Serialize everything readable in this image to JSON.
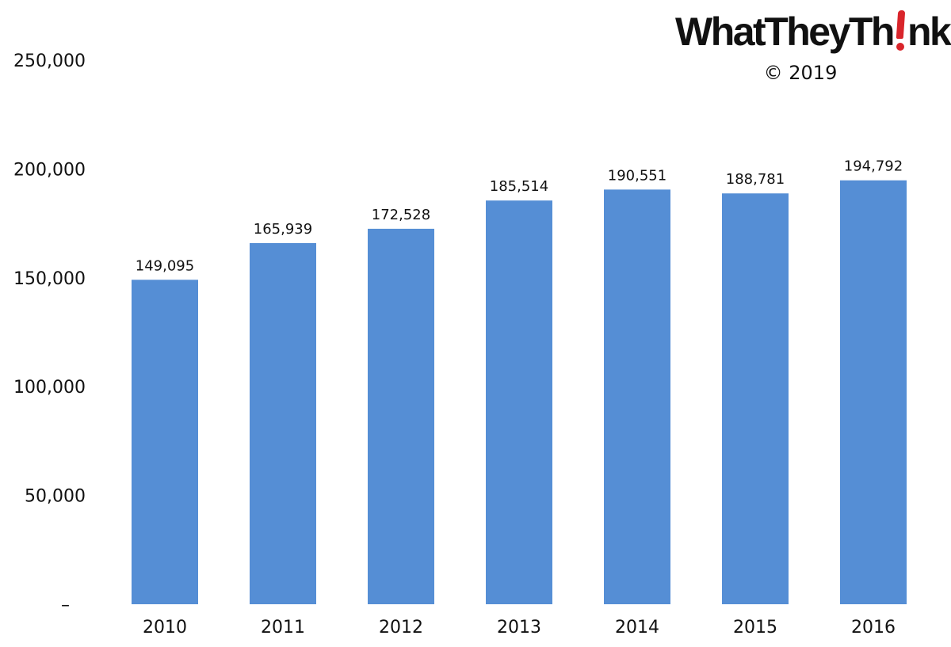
{
  "branding": {
    "logo_text_before": "WhatTheyTh",
    "logo_text_after": "nk",
    "copyright": "© 2019"
  },
  "colors": {
    "bar": "#558ed5",
    "text": "#111111",
    "logo_accent": "#d9252b"
  },
  "chart_data": {
    "type": "bar",
    "categories": [
      "2010",
      "2011",
      "2012",
      "2013",
      "2014",
      "2015",
      "2016"
    ],
    "values": [
      149095,
      165939,
      172528,
      185514,
      190551,
      188781,
      194792
    ],
    "value_labels": [
      "149,095",
      "165,939",
      "172,528",
      "185,514",
      "190,551",
      "188,781",
      "194,792"
    ],
    "title": "",
    "xlabel": "",
    "ylabel": "",
    "ylim": [
      0,
      250000
    ],
    "y_ticks": [
      0,
      50000,
      100000,
      150000,
      200000,
      250000
    ],
    "y_tick_labels": [
      "–",
      "50,000",
      "100,000",
      "150,000",
      "200,000",
      "250,000"
    ],
    "grid": false,
    "legend": "none"
  }
}
